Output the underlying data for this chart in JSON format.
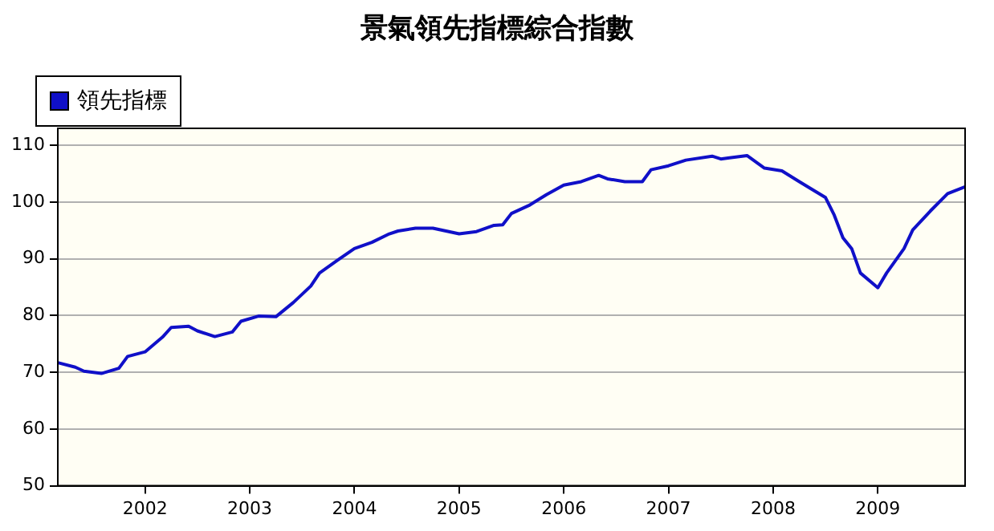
{
  "chart_data": {
    "type": "line",
    "title": "景氣領先指標綜合指數",
    "x": [
      "2001-03",
      "2001-05",
      "2001-06",
      "2001-08",
      "2001-10",
      "2001-11",
      "2002-01",
      "2002-03",
      "2002-04",
      "2002-06",
      "2002-07",
      "2002-09",
      "2002-11",
      "2002-12",
      "2003-02",
      "2003-04",
      "2003-06",
      "2003-08",
      "2003-09",
      "2003-11",
      "2004-01",
      "2004-03",
      "2004-05",
      "2004-06",
      "2004-08",
      "2004-10",
      "2005-01",
      "2005-03",
      "2005-05",
      "2005-06",
      "2005-07",
      "2005-09",
      "2005-11",
      "2006-01",
      "2006-03",
      "2006-05",
      "2006-06",
      "2006-08",
      "2006-10",
      "2006-11",
      "2007-01",
      "2007-03",
      "2007-06",
      "2007-07",
      "2007-08",
      "2007-10",
      "2007-12",
      "2008-02",
      "2008-04",
      "2008-07",
      "2008-08",
      "2008-09",
      "2008-10",
      "2008-11",
      "2009-01",
      "2009-02",
      "2009-04",
      "2009-05",
      "2009-07",
      "2009-09",
      "2009-11"
    ],
    "series": [
      {
        "name": "領先指標",
        "color": "#1010c8",
        "values": [
          71.7,
          70.9,
          70.2,
          69.8,
          70.7,
          72.8,
          73.6,
          76.2,
          77.9,
          78.1,
          77.3,
          76.3,
          77.1,
          79.0,
          79.9,
          79.8,
          82.3,
          85.2,
          87.5,
          89.7,
          91.8,
          92.9,
          94.4,
          94.9,
          95.4,
          95.4,
          94.4,
          94.8,
          95.9,
          96.0,
          98.0,
          99.4,
          101.3,
          103.0,
          103.6,
          104.7,
          104.1,
          103.6,
          103.6,
          105.7,
          106.4,
          107.4,
          108.1,
          107.6,
          107.8,
          108.2,
          106.0,
          105.5,
          103.6,
          100.8,
          97.7,
          93.7,
          91.8,
          87.5,
          84.9,
          87.5,
          91.8,
          95.1,
          98.4,
          101.5,
          102.7
        ]
      }
    ],
    "xlim": [
      "2001-03",
      "2009-11"
    ],
    "xticks": [
      {
        "value": "2002-01",
        "label": "2002"
      },
      {
        "value": "2003-01",
        "label": "2003"
      },
      {
        "value": "2004-01",
        "label": "2004"
      },
      {
        "value": "2005-01",
        "label": "2005"
      },
      {
        "value": "2006-01",
        "label": "2006"
      },
      {
        "value": "2007-01",
        "label": "2007"
      },
      {
        "value": "2008-01",
        "label": "2008"
      },
      {
        "value": "2009-01",
        "label": "2009"
      }
    ],
    "ylim": [
      50,
      113
    ],
    "yticks": [
      50,
      60,
      70,
      80,
      90,
      100,
      110
    ],
    "grid": "y",
    "legend": "top left",
    "marker": "none",
    "line_style": "solid"
  }
}
